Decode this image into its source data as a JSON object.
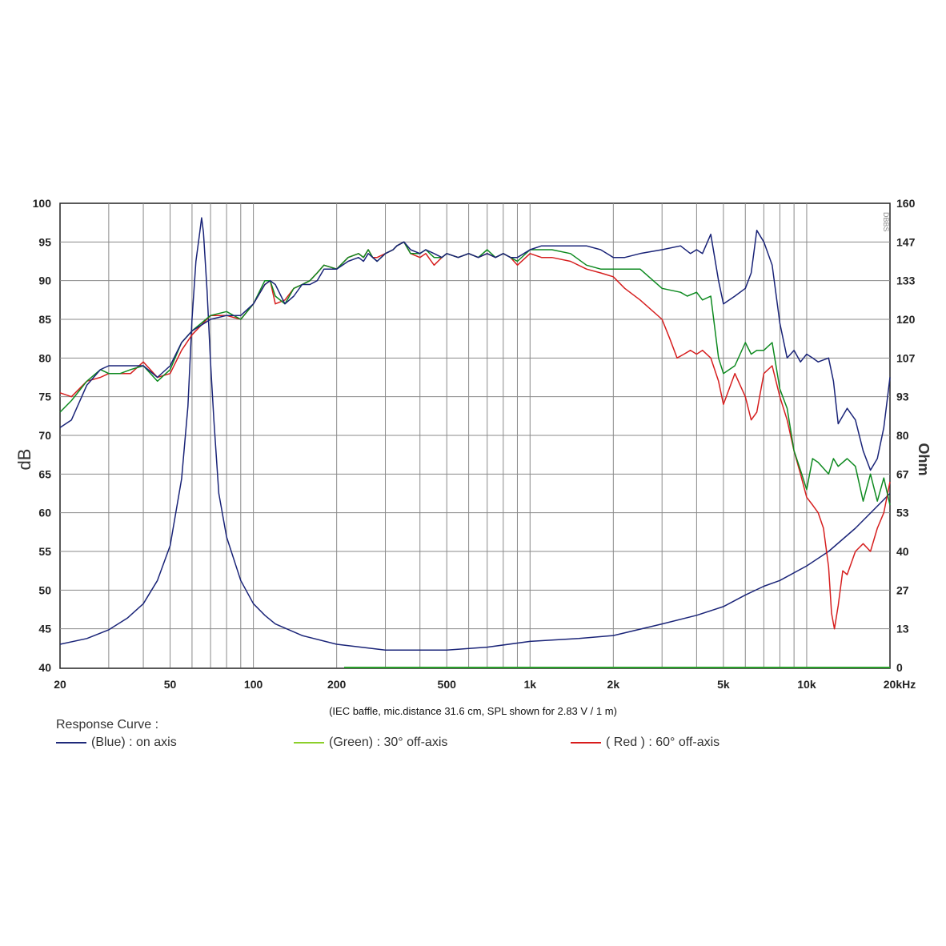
{
  "chart_data": {
    "type": "line",
    "x_scale": "log",
    "xlim": [
      20,
      20000
    ],
    "ylim": [
      40,
      100
    ],
    "y2lim": [
      0,
      160
    ],
    "ylabel": "dB",
    "y2label": "Ohm",
    "grid": true,
    "x_ticks": [
      {
        "value": 20,
        "label": "20"
      },
      {
        "value": 50,
        "label": "50"
      },
      {
        "value": 100,
        "label": "100"
      },
      {
        "value": 200,
        "label": "200"
      },
      {
        "value": 500,
        "label": "500"
      },
      {
        "value": 1000,
        "label": "1k"
      },
      {
        "value": 2000,
        "label": "2k"
      },
      {
        "value": 5000,
        "label": "5k"
      },
      {
        "value": 10000,
        "label": "10k"
      },
      {
        "value": 20000,
        "label": "20kHz"
      }
    ],
    "y_ticks": [
      "40",
      "45",
      "50",
      "55",
      "60",
      "65",
      "70",
      "75",
      "80",
      "85",
      "90",
      "95",
      "100"
    ],
    "y2_ticks": [
      "0",
      "13",
      "27",
      "40",
      "53",
      "67",
      "80",
      "93",
      "107",
      "120",
      "133",
      "147",
      "160"
    ],
    "note": "(IEC baffle, mic.distance 31.6 cm, SPL shown for 2.83 V / 1 m)",
    "watermark": "DBBS",
    "legend_title": "Response Curve :",
    "legend": [
      {
        "label": "(Blue)  : on axis",
        "color": "#1f2a7a"
      },
      {
        "label": "(Green) : 30° off-axis",
        "color": "#8ccf2a"
      },
      {
        "label": "( Red ) : 60° off-axis",
        "color": "#d81c1c"
      }
    ],
    "series": [
      {
        "key": "on_axis",
        "color": "#1a2478",
        "x": [
          20,
          22,
          25,
          28,
          30,
          33,
          36,
          40,
          45,
          50,
          55,
          60,
          70,
          80,
          90,
          100,
          110,
          115,
          120,
          130,
          140,
          150,
          160,
          170,
          180,
          200,
          220,
          240,
          250,
          260,
          270,
          280,
          300,
          320,
          330,
          350,
          370,
          400,
          420,
          450,
          480,
          500,
          550,
          600,
          650,
          700,
          750,
          800,
          850,
          900,
          1000,
          1100,
          1200,
          1400,
          1600,
          1800,
          2000,
          2200,
          2500,
          3000,
          3500,
          3800,
          4000,
          4200,
          4500,
          4800,
          5000,
          5500,
          6000,
          6300,
          6600,
          7000,
          7500,
          8000,
          8500,
          9000,
          9500,
          10000,
          10500,
          11000,
          12000,
          12500,
          13000,
          14000,
          15000,
          16000,
          17000,
          18000,
          19000,
          20000
        ],
        "y": [
          71,
          72,
          76.5,
          78.5,
          79,
          79,
          79,
          79,
          77.5,
          79,
          82,
          83.5,
          85,
          85.5,
          85.5,
          87,
          89.5,
          90,
          89.5,
          87,
          88,
          89.5,
          89.5,
          90,
          91.5,
          91.5,
          92.5,
          93,
          92.5,
          93.5,
          93,
          92.5,
          93.5,
          94,
          94.5,
          95,
          94,
          93.5,
          94,
          93.5,
          93,
          93.5,
          93,
          93.5,
          93,
          93.5,
          93,
          93.5,
          93,
          93,
          94,
          94.5,
          94.5,
          94.5,
          94.5,
          94,
          93,
          93,
          93.5,
          94,
          94.5,
          93.5,
          94,
          93.5,
          96,
          90,
          87,
          88,
          89,
          91,
          96.5,
          95,
          92,
          84.5,
          80,
          81,
          79.5,
          80.5,
          80,
          79.5,
          80,
          77,
          71.5,
          73.5,
          72,
          68,
          65.5,
          67,
          71,
          77.5
        ]
      },
      {
        "key": "off_30",
        "color": "#0e8a20",
        "x": [
          20,
          22,
          25,
          28,
          30,
          33,
          36,
          40,
          45,
          50,
          55,
          60,
          70,
          80,
          90,
          100,
          110,
          115,
          120,
          130,
          140,
          150,
          160,
          170,
          180,
          200,
          220,
          240,
          250,
          260,
          270,
          280,
          300,
          320,
          330,
          350,
          370,
          400,
          420,
          450,
          480,
          500,
          550,
          600,
          650,
          700,
          750,
          800,
          850,
          900,
          1000,
          1100,
          1200,
          1400,
          1600,
          1800,
          2000,
          2200,
          2500,
          3000,
          3500,
          3700,
          4000,
          4200,
          4500,
          4800,
          5000,
          5500,
          6000,
          6300,
          6600,
          7000,
          7500,
          8000,
          8500,
          9000,
          9500,
          10000,
          10500,
          11000,
          12000,
          12500,
          13000,
          14000,
          15000,
          16000,
          17000,
          18000,
          19000,
          20000
        ],
        "y": [
          73,
          74.5,
          77,
          78.5,
          78,
          78,
          78.5,
          79,
          77,
          78.5,
          82,
          83.5,
          85.5,
          86,
          85,
          87,
          90,
          90,
          88,
          87,
          89,
          89.5,
          90,
          91,
          92,
          91.5,
          93,
          93.5,
          93,
          94,
          93,
          92.5,
          93.5,
          94,
          94.5,
          95,
          93.5,
          93.5,
          94,
          93,
          93,
          93.5,
          93,
          93.5,
          93,
          94,
          93,
          93.5,
          93,
          92.5,
          94,
          94,
          94,
          93.5,
          92,
          91.5,
          91.5,
          91.5,
          91.5,
          89,
          88.5,
          88,
          88.5,
          87.5,
          88,
          80,
          78,
          79,
          82,
          80.5,
          81,
          81,
          82,
          76,
          73.5,
          68,
          65.5,
          63,
          67,
          66.5,
          65,
          67,
          66,
          67,
          66,
          61.5,
          65,
          61.5,
          64.5,
          61
        ]
      },
      {
        "key": "off_60",
        "color": "#d61f1f",
        "x": [
          20,
          22,
          25,
          28,
          30,
          33,
          36,
          40,
          45,
          50,
          55,
          60,
          70,
          80,
          90,
          100,
          110,
          115,
          120,
          130,
          140,
          150,
          160,
          170,
          180,
          200,
          220,
          240,
          250,
          260,
          270,
          280,
          300,
          320,
          330,
          350,
          370,
          400,
          420,
          450,
          480,
          500,
          550,
          600,
          650,
          700,
          750,
          800,
          850,
          900,
          1000,
          1100,
          1200,
          1400,
          1600,
          1800,
          2000,
          2200,
          2500,
          3000,
          3200,
          3400,
          3600,
          3800,
          4000,
          4200,
          4500,
          4800,
          5000,
          5500,
          6000,
          6300,
          6600,
          7000,
          7500,
          8000,
          8500,
          9000,
          9500,
          10000,
          10500,
          11000,
          11500,
          12000,
          12300,
          12600,
          13000,
          13500,
          14000,
          15000,
          16000,
          17000,
          18000,
          19000,
          20000
        ],
        "y": [
          75.5,
          75,
          77,
          77.5,
          78,
          78,
          78,
          79.5,
          77.5,
          78,
          81,
          83,
          85.5,
          85.5,
          85,
          87,
          89.5,
          90,
          87,
          87.5,
          89,
          89.5,
          90,
          91,
          92,
          91.5,
          93,
          93.5,
          93,
          94,
          93,
          93,
          93.5,
          94,
          94.5,
          95,
          93.5,
          93,
          93.5,
          92,
          93,
          93.5,
          93,
          93.5,
          93,
          93.5,
          93,
          93.5,
          93,
          92,
          93.5,
          93,
          93,
          92.5,
          91.5,
          91,
          90.5,
          89,
          87.5,
          85,
          82.5,
          80,
          80.5,
          81,
          80.5,
          81,
          80,
          77,
          74,
          78,
          75,
          72,
          73,
          78,
          79,
          75,
          72,
          68,
          65,
          62,
          61,
          60,
          58,
          53,
          47,
          45,
          48,
          52.5,
          52,
          55,
          56,
          55,
          58,
          60,
          64
        ]
      },
      {
        "key": "impedance",
        "color": "#1a2478",
        "axis": "right",
        "x": [
          20,
          25,
          30,
          35,
          40,
          45,
          50,
          55,
          58,
          60,
          62,
          64,
          65,
          66,
          68,
          70,
          72,
          75,
          80,
          90,
          100,
          110,
          120,
          150,
          200,
          300,
          500,
          700,
          1000,
          1500,
          2000,
          3000,
          4000,
          5000,
          6000,
          7000,
          8000,
          10000,
          12000,
          15000,
          20000
        ],
        "y": [
          8,
          10,
          13,
          17,
          22,
          30,
          42,
          65,
          90,
          120,
          140,
          150,
          155,
          150,
          130,
          105,
          85,
          60,
          45,
          30,
          22,
          18,
          15,
          11,
          8,
          6,
          6,
          7,
          9,
          10,
          11,
          15,
          18,
          21,
          25,
          28,
          30,
          35,
          40,
          48,
          60
        ]
      }
    ]
  }
}
